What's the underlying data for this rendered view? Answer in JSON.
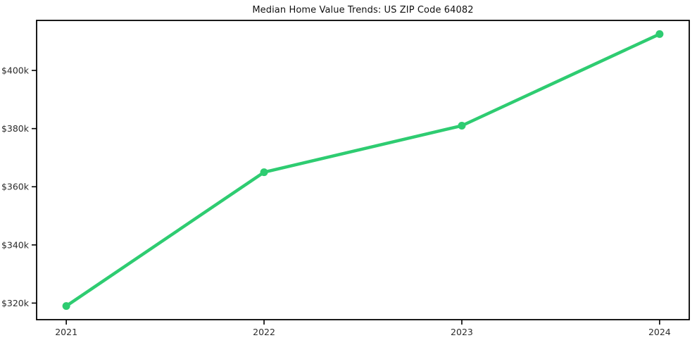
{
  "chart_data": {
    "type": "line",
    "title": "Median Home Value Trends: US ZIP Code 64082",
    "x": [
      2021,
      2022,
      2023,
      2024
    ],
    "x_tick_labels": [
      "2021",
      "2022",
      "2023",
      "2024"
    ],
    "series": [
      {
        "values": [
          319000,
          365000,
          381000,
          412500
        ],
        "color": "#2ecc71",
        "marker": "circle"
      }
    ],
    "y_ticks": [
      {
        "value": 320000,
        "label": "$320k"
      },
      {
        "value": 340000,
        "label": "$340k"
      },
      {
        "value": 360000,
        "label": "$360k"
      },
      {
        "value": 380000,
        "label": "$380k"
      },
      {
        "value": 400000,
        "label": "$400k"
      }
    ],
    "xlim": [
      2020.85,
      2024.15
    ],
    "ylim": [
      314300,
      417200
    ],
    "grid": false,
    "legend": "none",
    "frame_color": "#000000",
    "tick_label_color": "#2b2b2b",
    "background_color": "#ffffff"
  }
}
